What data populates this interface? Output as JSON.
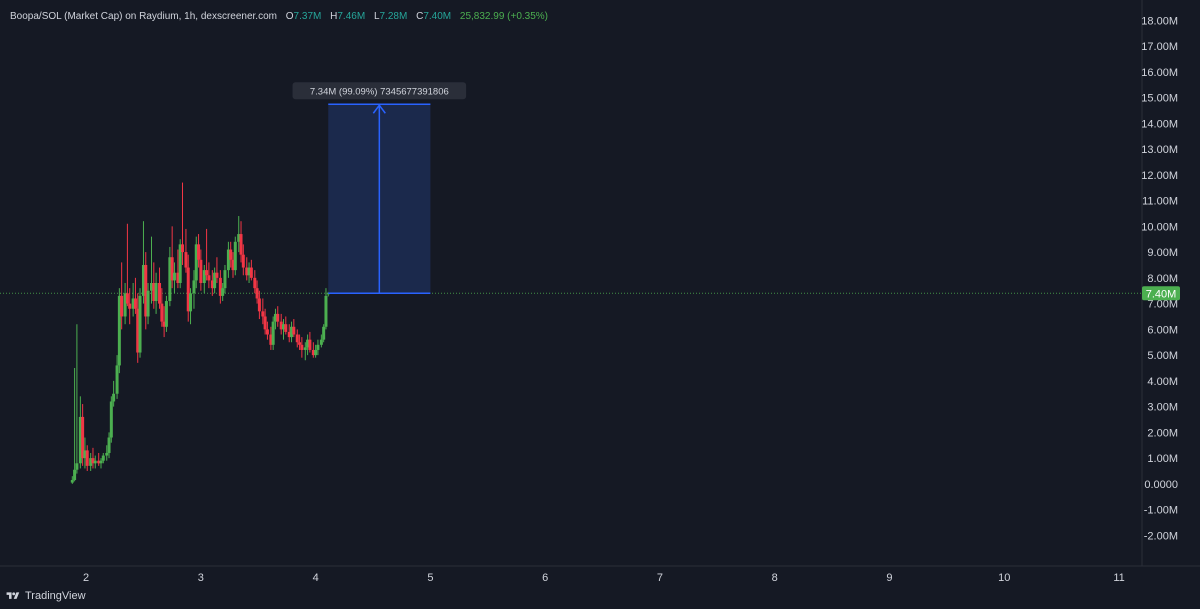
{
  "header": {
    "symbol": "Boopa/SOL (Market Cap) on Raydium, 1h, dexscreener.com",
    "o_label": "O",
    "o_value": "7.37M",
    "h_label": "H",
    "h_value": "7.46M",
    "l_label": "L",
    "l_value": "7.28M",
    "c_label": "C",
    "c_value": "7.40M",
    "change": "25,832.99 (+0.35%)"
  },
  "brand": {
    "label": "TradingView",
    "icon": "tradingview-logo-icon"
  },
  "colors": {
    "background": "#151924",
    "up": "#4caf50",
    "down": "#f23645",
    "measure_fill": "#1b2a4f",
    "measure_line": "#2962ff",
    "price_label_bg": "#4caf50",
    "axis_text": "#d1d4dc"
  },
  "chart_data": {
    "type": "candlestick",
    "x_axis": {
      "ticks": [
        2,
        3,
        4,
        5,
        6,
        7,
        8,
        9,
        10,
        11
      ],
      "range": [
        1.25,
        11.2
      ]
    },
    "y_axis": {
      "range": [
        -2.8,
        18.4
      ],
      "unit": "M",
      "tick_labels": [
        "18.00M",
        "17.00M",
        "16.00M",
        "15.00M",
        "14.00M",
        "13.00M",
        "12.00M",
        "11.00M",
        "10.00M",
        "9.00M",
        "8.00M",
        "7.00M",
        "6.00M",
        "5.00M",
        "4.00M",
        "3.00M",
        "2.00M",
        "1.00M",
        "0.0000",
        "-1.00M",
        "-2.00M"
      ],
      "tick_values": [
        18,
        17,
        16,
        15,
        14,
        13,
        12,
        11,
        10,
        9,
        8,
        7,
        6,
        5,
        4,
        3,
        2,
        1,
        0,
        -1,
        -2
      ]
    },
    "last_price": {
      "value": 7.4,
      "label": "7.40M"
    },
    "candles": [
      {
        "t": 1.88,
        "o": 0.05,
        "h": 0.3,
        "l": 0.0,
        "c": 0.15
      },
      {
        "t": 1.9,
        "o": 0.15,
        "h": 4.5,
        "l": 0.1,
        "c": 0.55
      },
      {
        "t": 1.92,
        "o": 0.55,
        "h": 6.2,
        "l": 0.4,
        "c": 0.8
      },
      {
        "t": 1.95,
        "o": 0.8,
        "h": 3.4,
        "l": 0.6,
        "c": 2.6
      },
      {
        "t": 1.97,
        "o": 2.6,
        "h": 3.1,
        "l": 0.7,
        "c": 1.0
      },
      {
        "t": 1.99,
        "o": 1.0,
        "h": 1.8,
        "l": 0.6,
        "c": 1.3
      },
      {
        "t": 2.01,
        "o": 1.3,
        "h": 1.5,
        "l": 0.5,
        "c": 0.7
      },
      {
        "t": 2.04,
        "o": 0.7,
        "h": 1.2,
        "l": 0.5,
        "c": 1.0
      },
      {
        "t": 2.06,
        "o": 1.0,
        "h": 1.4,
        "l": 0.6,
        "c": 0.8
      },
      {
        "t": 2.08,
        "o": 0.8,
        "h": 1.1,
        "l": 0.6,
        "c": 0.9
      },
      {
        "t": 2.11,
        "o": 0.9,
        "h": 1.2,
        "l": 0.7,
        "c": 0.8
      },
      {
        "t": 2.13,
        "o": 0.8,
        "h": 1.0,
        "l": 0.6,
        "c": 0.9
      },
      {
        "t": 2.15,
        "o": 0.9,
        "h": 1.2,
        "l": 0.8,
        "c": 1.1
      },
      {
        "t": 2.18,
        "o": 1.1,
        "h": 1.5,
        "l": 0.9,
        "c": 1.2
      },
      {
        "t": 2.2,
        "o": 1.2,
        "h": 2.0,
        "l": 1.0,
        "c": 1.8
      },
      {
        "t": 2.22,
        "o": 1.8,
        "h": 3.4,
        "l": 1.6,
        "c": 3.2
      },
      {
        "t": 2.24,
        "o": 3.2,
        "h": 4.0,
        "l": 3.0,
        "c": 3.5
      },
      {
        "t": 2.27,
        "o": 3.5,
        "h": 5.0,
        "l": 3.3,
        "c": 4.6
      },
      {
        "t": 2.29,
        "o": 4.6,
        "h": 7.6,
        "l": 4.3,
        "c": 7.3
      },
      {
        "t": 2.31,
        "o": 7.3,
        "h": 8.6,
        "l": 6.0,
        "c": 6.5
      },
      {
        "t": 2.34,
        "o": 6.5,
        "h": 7.8,
        "l": 6.2,
        "c": 7.4
      },
      {
        "t": 2.36,
        "o": 7.4,
        "h": 10.1,
        "l": 6.9,
        "c": 7.0
      },
      {
        "t": 2.38,
        "o": 7.0,
        "h": 7.6,
        "l": 6.2,
        "c": 6.8
      },
      {
        "t": 2.41,
        "o": 6.8,
        "h": 7.8,
        "l": 6.5,
        "c": 7.2
      },
      {
        "t": 2.43,
        "o": 7.2,
        "h": 8.0,
        "l": 6.6,
        "c": 6.8
      },
      {
        "t": 2.45,
        "o": 6.8,
        "h": 7.4,
        "l": 4.7,
        "c": 5.1
      },
      {
        "t": 2.47,
        "o": 5.1,
        "h": 7.6,
        "l": 4.9,
        "c": 7.3
      },
      {
        "t": 2.5,
        "o": 7.3,
        "h": 10.2,
        "l": 7.0,
        "c": 8.5
      },
      {
        "t": 2.52,
        "o": 8.5,
        "h": 9.0,
        "l": 6.0,
        "c": 6.5
      },
      {
        "t": 2.54,
        "o": 6.5,
        "h": 7.8,
        "l": 6.2,
        "c": 7.5
      },
      {
        "t": 2.57,
        "o": 7.5,
        "h": 9.6,
        "l": 7.0,
        "c": 7.8
      },
      {
        "t": 2.59,
        "o": 7.8,
        "h": 8.6,
        "l": 6.8,
        "c": 7.1
      },
      {
        "t": 2.61,
        "o": 7.1,
        "h": 8.2,
        "l": 6.6,
        "c": 7.8
      },
      {
        "t": 2.64,
        "o": 7.8,
        "h": 8.4,
        "l": 6.8,
        "c": 7.0
      },
      {
        "t": 2.66,
        "o": 7.0,
        "h": 7.6,
        "l": 6.1,
        "c": 6.3
      },
      {
        "t": 2.68,
        "o": 6.3,
        "h": 6.9,
        "l": 5.7,
        "c": 6.1
      },
      {
        "t": 2.7,
        "o": 6.1,
        "h": 7.3,
        "l": 5.9,
        "c": 7.1
      },
      {
        "t": 2.73,
        "o": 7.1,
        "h": 9.2,
        "l": 6.9,
        "c": 8.8
      },
      {
        "t": 2.75,
        "o": 8.8,
        "h": 10.0,
        "l": 7.6,
        "c": 7.9
      },
      {
        "t": 2.77,
        "o": 7.9,
        "h": 8.6,
        "l": 7.4,
        "c": 8.2
      },
      {
        "t": 2.8,
        "o": 8.2,
        "h": 9.1,
        "l": 7.6,
        "c": 7.8
      },
      {
        "t": 2.82,
        "o": 7.8,
        "h": 9.5,
        "l": 7.6,
        "c": 9.3
      },
      {
        "t": 2.84,
        "o": 9.3,
        "h": 11.7,
        "l": 8.5,
        "c": 9.0
      },
      {
        "t": 2.87,
        "o": 9.0,
        "h": 9.9,
        "l": 8.2,
        "c": 8.4
      },
      {
        "t": 2.89,
        "o": 8.4,
        "h": 8.9,
        "l": 6.3,
        "c": 6.7
      },
      {
        "t": 2.91,
        "o": 6.7,
        "h": 7.6,
        "l": 6.2,
        "c": 7.4
      },
      {
        "t": 2.94,
        "o": 7.4,
        "h": 8.3,
        "l": 6.8,
        "c": 7.9
      },
      {
        "t": 2.96,
        "o": 7.9,
        "h": 9.6,
        "l": 7.6,
        "c": 9.3
      },
      {
        "t": 2.98,
        "o": 9.3,
        "h": 9.7,
        "l": 8.4,
        "c": 8.7
      },
      {
        "t": 3.0,
        "o": 8.7,
        "h": 9.1,
        "l": 7.5,
        "c": 7.8
      },
      {
        "t": 3.03,
        "o": 7.8,
        "h": 8.5,
        "l": 7.4,
        "c": 8.3
      },
      {
        "t": 3.05,
        "o": 8.3,
        "h": 9.9,
        "l": 7.9,
        "c": 8.1
      },
      {
        "t": 3.07,
        "o": 8.1,
        "h": 8.6,
        "l": 7.6,
        "c": 7.9
      },
      {
        "t": 3.1,
        "o": 7.9,
        "h": 8.3,
        "l": 7.3,
        "c": 7.6
      },
      {
        "t": 3.12,
        "o": 7.6,
        "h": 8.4,
        "l": 7.4,
        "c": 8.2
      },
      {
        "t": 3.14,
        "o": 8.2,
        "h": 8.8,
        "l": 7.8,
        "c": 8.0
      },
      {
        "t": 3.17,
        "o": 8.0,
        "h": 8.3,
        "l": 7.0,
        "c": 7.3
      },
      {
        "t": 3.19,
        "o": 7.3,
        "h": 7.8,
        "l": 7.1,
        "c": 7.6
      },
      {
        "t": 3.21,
        "o": 7.6,
        "h": 8.5,
        "l": 7.4,
        "c": 8.3
      },
      {
        "t": 3.24,
        "o": 8.3,
        "h": 9.4,
        "l": 8.0,
        "c": 9.1
      },
      {
        "t": 3.26,
        "o": 9.1,
        "h": 9.4,
        "l": 8.4,
        "c": 8.7
      },
      {
        "t": 3.28,
        "o": 8.7,
        "h": 9.0,
        "l": 8.0,
        "c": 8.3
      },
      {
        "t": 3.3,
        "o": 8.3,
        "h": 9.6,
        "l": 8.1,
        "c": 9.4
      },
      {
        "t": 3.33,
        "o": 9.4,
        "h": 10.4,
        "l": 9.0,
        "c": 9.7
      },
      {
        "t": 3.35,
        "o": 9.7,
        "h": 10.2,
        "l": 8.6,
        "c": 8.9
      },
      {
        "t": 3.37,
        "o": 8.9,
        "h": 9.3,
        "l": 8.1,
        "c": 8.4
      },
      {
        "t": 3.4,
        "o": 8.4,
        "h": 8.8,
        "l": 7.9,
        "c": 8.1
      },
      {
        "t": 3.42,
        "o": 8.1,
        "h": 8.6,
        "l": 7.8,
        "c": 8.4
      },
      {
        "t": 3.44,
        "o": 8.4,
        "h": 8.7,
        "l": 7.9,
        "c": 8.0
      },
      {
        "t": 3.47,
        "o": 8.0,
        "h": 8.3,
        "l": 7.4,
        "c": 7.6
      },
      {
        "t": 3.49,
        "o": 7.6,
        "h": 7.9,
        "l": 7.0,
        "c": 7.2
      },
      {
        "t": 3.51,
        "o": 7.2,
        "h": 7.5,
        "l": 6.4,
        "c": 6.7
      },
      {
        "t": 3.54,
        "o": 6.7,
        "h": 7.2,
        "l": 6.2,
        "c": 6.5
      },
      {
        "t": 3.56,
        "o": 6.5,
        "h": 6.8,
        "l": 5.8,
        "c": 6.0
      },
      {
        "t": 3.58,
        "o": 6.0,
        "h": 6.3,
        "l": 5.6,
        "c": 5.8
      },
      {
        "t": 3.61,
        "o": 5.8,
        "h": 6.1,
        "l": 5.2,
        "c": 5.4
      },
      {
        "t": 3.63,
        "o": 5.4,
        "h": 6.5,
        "l": 5.2,
        "c": 6.3
      },
      {
        "t": 3.65,
        "o": 6.3,
        "h": 6.8,
        "l": 6.0,
        "c": 6.6
      },
      {
        "t": 3.67,
        "o": 6.6,
        "h": 6.9,
        "l": 6.1,
        "c": 6.3
      },
      {
        "t": 3.7,
        "o": 6.3,
        "h": 6.6,
        "l": 5.8,
        "c": 6.0
      },
      {
        "t": 3.72,
        "o": 6.0,
        "h": 6.4,
        "l": 5.6,
        "c": 6.2
      },
      {
        "t": 3.74,
        "o": 6.2,
        "h": 6.5,
        "l": 5.8,
        "c": 5.9
      },
      {
        "t": 3.77,
        "o": 5.9,
        "h": 6.2,
        "l": 5.5,
        "c": 5.7
      },
      {
        "t": 3.79,
        "o": 5.7,
        "h": 6.3,
        "l": 5.5,
        "c": 6.1
      },
      {
        "t": 3.81,
        "o": 6.1,
        "h": 6.4,
        "l": 5.7,
        "c": 5.8
      },
      {
        "t": 3.84,
        "o": 5.8,
        "h": 6.0,
        "l": 5.3,
        "c": 5.5
      },
      {
        "t": 3.86,
        "o": 5.5,
        "h": 5.8,
        "l": 5.2,
        "c": 5.4
      },
      {
        "t": 3.88,
        "o": 5.4,
        "h": 5.7,
        "l": 4.9,
        "c": 5.2
      },
      {
        "t": 3.91,
        "o": 5.2,
        "h": 5.5,
        "l": 4.8,
        "c": 5.3
      },
      {
        "t": 3.93,
        "o": 5.3,
        "h": 5.8,
        "l": 5.0,
        "c": 5.6
      },
      {
        "t": 3.95,
        "o": 5.6,
        "h": 5.9,
        "l": 5.1,
        "c": 5.2
      },
      {
        "t": 3.98,
        "o": 5.2,
        "h": 5.5,
        "l": 4.9,
        "c": 5.0
      },
      {
        "t": 4.0,
        "o": 5.0,
        "h": 5.4,
        "l": 4.9,
        "c": 5.2
      },
      {
        "t": 4.02,
        "o": 5.2,
        "h": 5.6,
        "l": 5.0,
        "c": 5.4
      },
      {
        "t": 4.05,
        "o": 5.4,
        "h": 5.8,
        "l": 5.3,
        "c": 5.6
      },
      {
        "t": 4.07,
        "o": 5.6,
        "h": 6.2,
        "l": 5.5,
        "c": 6.1
      },
      {
        "t": 4.09,
        "o": 6.1,
        "h": 7.6,
        "l": 6.0,
        "c": 7.3
      },
      {
        "t": 4.11,
        "o": 7.37,
        "h": 7.46,
        "l": 7.28,
        "c": 7.4
      }
    ],
    "measure": {
      "from_x": 4.11,
      "to_x": 5.0,
      "from_y": 7.4,
      "to_y": 14.74,
      "label": "7.34M (99.09%) 7345677391806"
    }
  }
}
